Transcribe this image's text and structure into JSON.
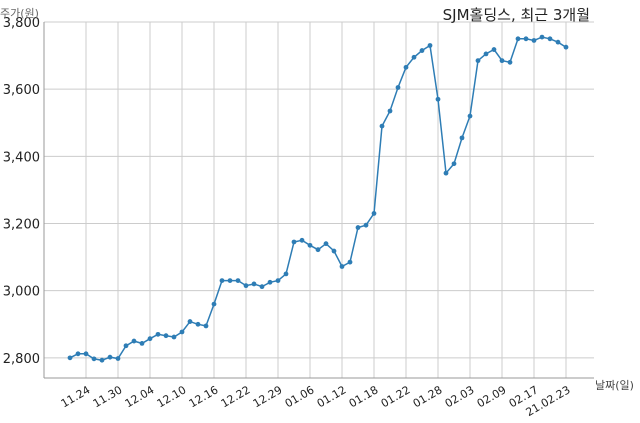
{
  "chart_data": {
    "type": "line",
    "title": "SJM홀딩스, 최근 3개월",
    "ylabel": "주가(원)",
    "xlabel": "날짜(일)",
    "ylim": [
      2740,
      3800
    ],
    "yticks": [
      2800,
      3000,
      3200,
      3400,
      3600,
      3800
    ],
    "ytick_labels": [
      "2,800",
      "3,000",
      "3,200",
      "3,400",
      "3,600",
      "3,800"
    ],
    "grid": true,
    "color": "#2e7db5",
    "xtick_labels": [
      "11.24",
      "11.30",
      "12.04",
      "12.10",
      "12.16",
      "12.22",
      "12.29",
      "01.06",
      "01.12",
      "01.18",
      "01.22",
      "01.28",
      "02.03",
      "02.09",
      "02.17",
      "21.02.23"
    ],
    "xtick_index": [
      2,
      6,
      10,
      14,
      18,
      22,
      26,
      30,
      34,
      38,
      42,
      46,
      50,
      54,
      58,
      62
    ],
    "series": [
      {
        "values": [
          2800,
          2812,
          2812,
          2797,
          2793,
          2802,
          2798,
          2836,
          2850,
          2843,
          2857,
          2870,
          2866,
          2862,
          2877,
          2908,
          2900,
          2895,
          2960,
          3030,
          3030,
          3030,
          3015,
          3020,
          3012,
          3025,
          3030,
          3050,
          3145,
          3150,
          3135,
          3122,
          3140,
          3118,
          3072,
          3085,
          3188,
          3195,
          3230,
          3490,
          3535,
          3605,
          3665,
          3695,
          3715,
          3730,
          3570,
          3350,
          3378,
          3455,
          3520,
          3685,
          3705,
          3718,
          3685,
          3680,
          3750,
          3750,
          3745,
          3755,
          3750,
          3740,
          3725
        ]
      }
    ]
  }
}
